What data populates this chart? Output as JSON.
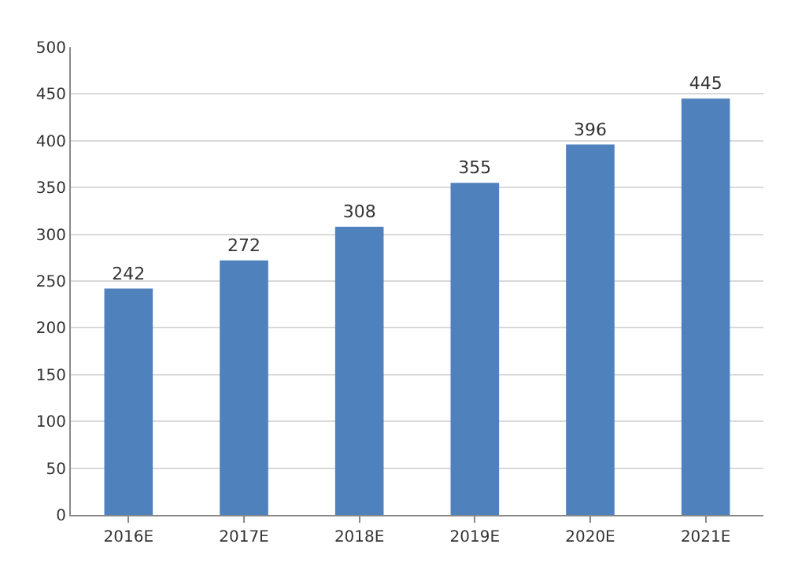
{
  "chart_data": {
    "type": "bar",
    "categories": [
      "2016E",
      "2017E",
      "2018E",
      "2019E",
      "2020E",
      "2021E"
    ],
    "values": [
      242,
      272,
      308,
      355,
      396,
      445
    ],
    "color": "#4f81bd",
    "ylim": [
      0,
      500
    ],
    "yticks": [
      0,
      50,
      100,
      150,
      200,
      250,
      300,
      350,
      400,
      450,
      500
    ],
    "grid": "y",
    "data_labels": true
  }
}
